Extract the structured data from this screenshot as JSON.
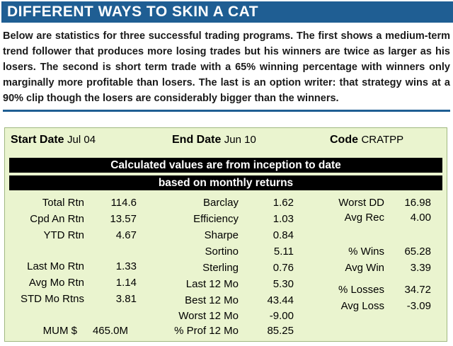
{
  "title": "DIFFERENT WAYS TO SKIN A CAT",
  "intro": "Below are statistics for three successful trading programs. The first shows a medium-term trend follower that produces more losing trades but his winners are twice as larger as his losers. The second is short term trade with a 65% winning percentage with winners only marginally more profitable than losers. The last is an option writer: that strategy wins at a 90% clip though the losers are considerably bigger than the winners.",
  "colors": {
    "title_bg": "#1f5e93",
    "panel_bg": "#eaf4cf"
  },
  "panel": {
    "start_date_label": "Start Date",
    "start_date_value": "Jul 04",
    "end_date_label": "End Date",
    "end_date_value": "Jun 10",
    "code_label": "Code",
    "code_value": "CRATPP",
    "banner1": "Calculated values are from inception to date",
    "banner2": "based on monthly returns",
    "col1": [
      {
        "label": "Total Rtn",
        "value": "114.6"
      },
      {
        "label": "Cpd An Rtn",
        "value": "13.57"
      },
      {
        "label": "YTD Rtn",
        "value": "4.67"
      },
      {
        "label": "Last Mo Rtn",
        "value": "1.33"
      },
      {
        "label": "Avg Mo Rtn",
        "value": "1.14"
      },
      {
        "label": "STD Mo Rtns",
        "value": "3.81"
      },
      {
        "label": "MUM $",
        "value": "465.0M"
      }
    ],
    "col2": [
      {
        "label": "Barclay",
        "value": "1.62"
      },
      {
        "label": "Efficiency",
        "value": "1.03"
      },
      {
        "label": "Sharpe",
        "value": "0.84"
      },
      {
        "label": "Sortino",
        "value": "5.11"
      },
      {
        "label": "Sterling",
        "value": "0.76"
      },
      {
        "label": "Last 12 Mo",
        "value": "5.30"
      },
      {
        "label": "Best 12 Mo",
        "value": "43.44"
      },
      {
        "label": "Worst 12 Mo",
        "value": "-9.00"
      },
      {
        "label": "% Prof 12 Mo",
        "value": "85.25"
      }
    ],
    "col3": [
      {
        "label": "Worst DD",
        "value": "16.98"
      },
      {
        "label": "Avg Rec",
        "value": "4.00"
      },
      {
        "label": "% Wins",
        "value": "65.28"
      },
      {
        "label": "Avg Win",
        "value": "3.39"
      },
      {
        "label": "% Losses",
        "value": "34.72"
      },
      {
        "label": "Avg Loss",
        "value": "-3.09"
      }
    ]
  }
}
